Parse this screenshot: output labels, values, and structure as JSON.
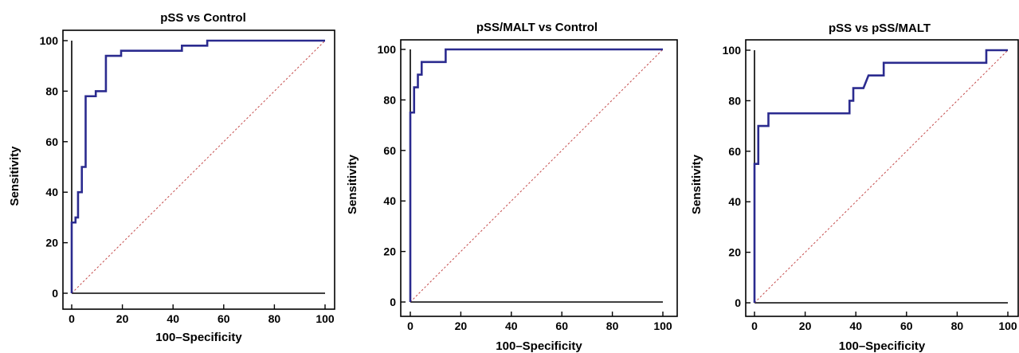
{
  "chart_data": [
    {
      "type": "line",
      "title": "pSS vs Control",
      "xlabel": "100–Specificity",
      "ylabel": "Sensitivity",
      "xlim": [
        0,
        100
      ],
      "ylim": [
        0,
        100
      ],
      "xticks": [
        "0",
        "20",
        "40",
        "60",
        "80",
        "100"
      ],
      "yticks": [
        "0",
        "20",
        "40",
        "60",
        "80",
        "100"
      ],
      "roc": {
        "x": [
          0,
          0,
          1.5,
          1.5,
          2.5,
          2.5,
          4,
          4,
          5.5,
          5.5,
          9.5,
          9.5,
          13.5,
          13.5,
          19.5,
          19.5,
          43.5,
          43.5,
          53.5,
          53.5,
          100
        ],
        "y": [
          0,
          28,
          28,
          30,
          30,
          40,
          40,
          50,
          50,
          78,
          78,
          80,
          80,
          94,
          94,
          96,
          96,
          98,
          98,
          100,
          100
        ]
      },
      "reference_line": {
        "x": [
          0,
          100
        ],
        "y": [
          0,
          100
        ]
      },
      "colors": {
        "roc": "#2b2b8f",
        "reference": "#c44b4b"
      }
    },
    {
      "type": "line",
      "title": "pSS/MALT vs Control",
      "xlabel": "100–Specificity",
      "ylabel": "Sensitivity",
      "xlim": [
        0,
        100
      ],
      "ylim": [
        0,
        100
      ],
      "xticks": [
        "0",
        "20",
        "40",
        "60",
        "80",
        "100"
      ],
      "yticks": [
        "0",
        "20",
        "40",
        "60",
        "80",
        "100"
      ],
      "roc": {
        "x": [
          0,
          0,
          1.5,
          1.5,
          3,
          3,
          4.5,
          4.5,
          6,
          6,
          14,
          14,
          100
        ],
        "y": [
          0,
          75,
          75,
          85,
          85,
          90,
          90,
          95,
          95,
          95,
          95,
          100,
          100
        ]
      },
      "reference_line": {
        "x": [
          0,
          100
        ],
        "y": [
          0,
          100
        ]
      },
      "colors": {
        "roc": "#2b2b8f",
        "reference": "#c44b4b"
      }
    },
    {
      "type": "line",
      "title": "pSS vs pSS/MALT",
      "xlabel": "100–Specificity",
      "ylabel": "Sensitivity",
      "xlim": [
        0,
        100
      ],
      "ylim": [
        0,
        100
      ],
      "xticks": [
        "0",
        "20",
        "40",
        "60",
        "80",
        "100"
      ],
      "yticks": [
        "0",
        "20",
        "40",
        "60",
        "80",
        "100"
      ],
      "roc": {
        "x": [
          0,
          0,
          1.5,
          1.5,
          5.5,
          5.5,
          37.5,
          37.5,
          39,
          39,
          43,
          45,
          45,
          51,
          51,
          91.5,
          91.5,
          100
        ],
        "y": [
          0,
          55,
          55,
          70,
          70,
          75,
          75,
          80,
          80,
          85,
          85,
          90,
          90,
          90,
          95,
          95,
          100,
          100
        ]
      },
      "reference_line": {
        "x": [
          0,
          100
        ],
        "y": [
          0,
          100
        ]
      },
      "colors": {
        "roc": "#2b2b8f",
        "reference": "#c44b4b"
      }
    }
  ]
}
